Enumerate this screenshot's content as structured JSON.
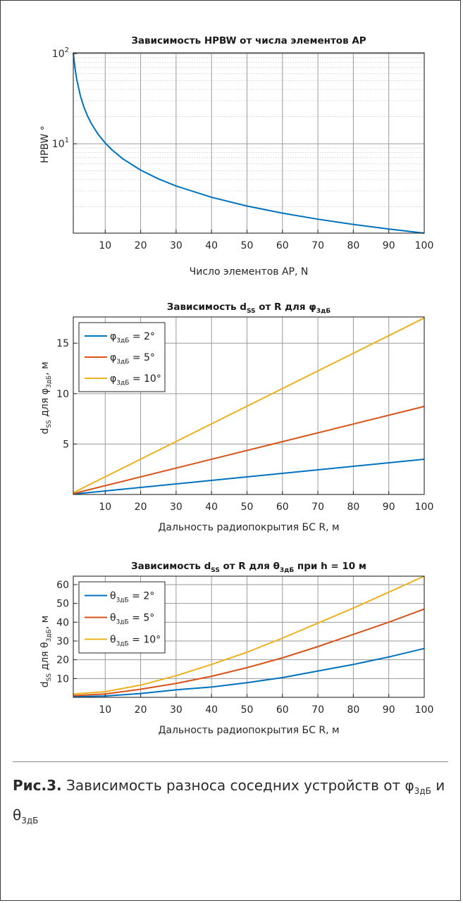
{
  "chart_data": [
    {
      "type": "line",
      "title": "Зависимость HPBW от числа  элементов АР",
      "xlabel": "Число элементов АР, N",
      "ylabel": "HPBW °",
      "y_scale": "log",
      "xlim": [
        1,
        100
      ],
      "ylim": [
        1.02,
        102
      ],
      "xticks": [
        10,
        20,
        30,
        40,
        50,
        60,
        70,
        80,
        90,
        100
      ],
      "yticks": [
        {
          "value": 10,
          "base": "10",
          "exp": "1"
        },
        {
          "value": 100,
          "base": "10",
          "exp": "2"
        }
      ],
      "grid": true,
      "series": [
        {
          "color": "#0072bd",
          "x": [
            1,
            1.5,
            2,
            3,
            4,
            5,
            6,
            8,
            10,
            12,
            15,
            20,
            25,
            30,
            40,
            50,
            60,
            70,
            80,
            90,
            100
          ],
          "y": [
            102,
            68,
            51,
            34,
            25.5,
            20.4,
            17,
            12.75,
            10.2,
            8.5,
            6.8,
            5.1,
            4.08,
            3.4,
            2.55,
            2.04,
            1.7,
            1.457,
            1.275,
            1.133,
            1.02
          ]
        }
      ]
    },
    {
      "type": "line",
      "title_main": "Зависимость d",
      "title_sub": "SS",
      "title_rest": " от R для φ",
      "title_sub2": "3дБ",
      "xlabel": "Дальность радиопокрытия БС R, м",
      "ylabel_main": "d",
      "ylabel_sub": "SS",
      "ylabel_mid": " для φ",
      "ylabel_sub2": "3дБ",
      "ylabel_end": ", м",
      "xlim": [
        1,
        100
      ],
      "ylim": [
        0,
        17.6
      ],
      "xticks": [
        10,
        20,
        30,
        40,
        50,
        60,
        70,
        80,
        90,
        100
      ],
      "yticks": [
        5,
        10,
        15
      ],
      "grid": true,
      "legend": "top-left",
      "series": [
        {
          "legend_sym": "φ",
          "legend_sub": "3дБ",
          "legend_val": " = 2°",
          "color": "#0072bd",
          "x": [
            1,
            100
          ],
          "y": [
            0.035,
            3.49
          ]
        },
        {
          "legend_sym": "φ",
          "legend_sub": "3дБ",
          "legend_val": " = 5°",
          "color": "#d95319",
          "x": [
            1,
            100
          ],
          "y": [
            0.087,
            8.73
          ]
        },
        {
          "legend_sym": "φ",
          "legend_sub": "3дБ",
          "legend_val": " = 10°",
          "color": "#edb120",
          "x": [
            1,
            100
          ],
          "y": [
            0.175,
            17.5
          ]
        }
      ]
    },
    {
      "type": "line",
      "title_main": "Зависимость d",
      "title_sub": "SS",
      "title_rest": " от R для θ",
      "title_sub2": "3дБ",
      "title_end": " при h = 10 м",
      "xlabel": "Дальность радиопокрытия БС R, м",
      "ylabel_main": "d",
      "ylabel_sub": "SS",
      "ylabel_mid": " для θ",
      "ylabel_sub2": "3дБ",
      "ylabel_end": ", м",
      "xlim": [
        1,
        100
      ],
      "ylim": [
        0,
        64.5
      ],
      "xticks": [
        10,
        20,
        30,
        40,
        50,
        60,
        70,
        80,
        90,
        100
      ],
      "yticks": [
        10,
        20,
        30,
        40,
        50,
        60
      ],
      "grid": true,
      "legend": "top-left",
      "series": [
        {
          "legend_sym": "θ",
          "legend_sub": "3дБ",
          "legend_val": " = 2°",
          "color": "#0072bd",
          "x": [
            1,
            10,
            20,
            30,
            40,
            50,
            60,
            70,
            80,
            90,
            100
          ],
          "y": [
            0.35,
            0.7,
            2.0,
            4.0,
            5.5,
            7.8,
            10.5,
            14.0,
            17.5,
            21.5,
            26.0
          ]
        },
        {
          "legend_sym": "θ",
          "legend_sub": "3дБ",
          "legend_val": " = 5°",
          "color": "#d95319",
          "x": [
            1,
            10,
            20,
            30,
            40,
            50,
            60,
            70,
            80,
            90,
            100
          ],
          "y": [
            0.9,
            1.8,
            4.3,
            7.4,
            11.2,
            15.8,
            21.0,
            27.0,
            33.5,
            40.0,
            47.0
          ]
        },
        {
          "legend_sym": "θ",
          "legend_sub": "3дБ",
          "legend_val": " = 10°",
          "color": "#edb120",
          "x": [
            1,
            10,
            20,
            30,
            40,
            50,
            60,
            70,
            80,
            90,
            100
          ],
          "y": [
            1.75,
            3.0,
            6.5,
            11.5,
            17.5,
            24.0,
            31.5,
            39.5,
            47.5,
            56.0,
            64.5
          ]
        }
      ]
    }
  ],
  "caption": {
    "label": "Рис.3.",
    "text": " Зависимость разноса соседних устройств от φ",
    "sub1": "3дБ",
    "and": " и θ",
    "sub2": "3дБ"
  }
}
